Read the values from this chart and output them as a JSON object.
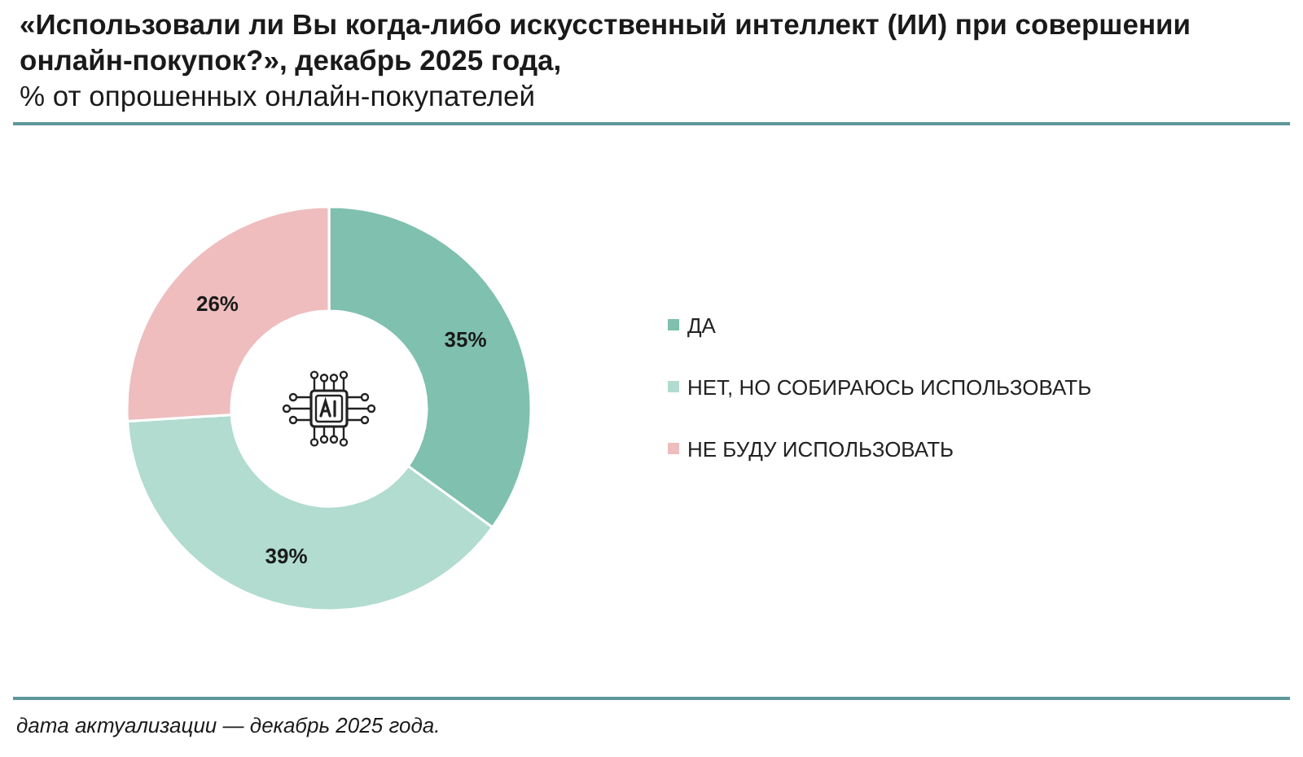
{
  "chart_data": {
    "type": "donut",
    "title": "«Использовали ли Вы когда-либо искусственный интеллект (ИИ) при совершении онлайн-покупок?», декабрь 2025 года,",
    "subtitle": "% от опрошенных онлайн-покупателей",
    "categories": [
      "ДА",
      "НЕТ, НО СОБИРАЮСЬ ИСПОЛЬЗОВАТЬ",
      "НЕ БУДУ ИСПОЛЬЗОВАТЬ"
    ],
    "values": [
      35,
      39,
      26
    ],
    "colors": [
      "#7fc0ae",
      "#b1dccf",
      "#efbdbe"
    ],
    "value_labels": [
      "35%",
      "39%",
      "26%"
    ],
    "legend": "right",
    "annotations": [
      "дата актуализации — декабрь 2025 года."
    ]
  }
}
